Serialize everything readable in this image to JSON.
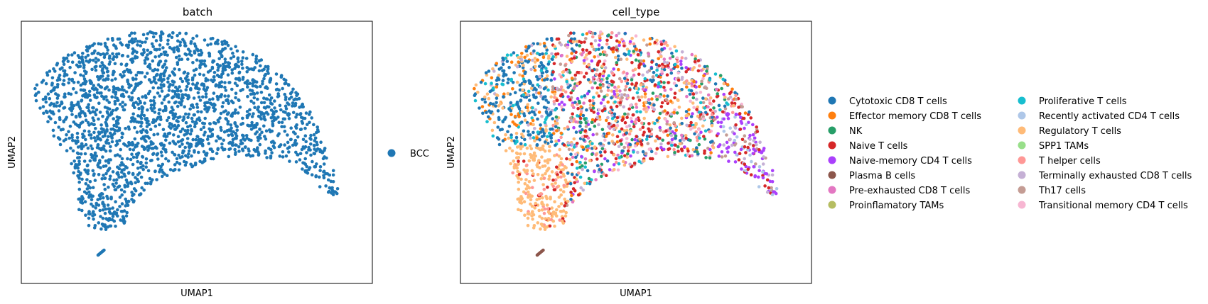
{
  "chart_data": [
    {
      "type": "scatter",
      "title": "batch",
      "xlabel": "UMAP1",
      "ylabel": "UMAP2",
      "grid": false,
      "ticks": false,
      "legend": {
        "placement": "right",
        "entries": [
          {
            "name": "BCC",
            "color": "#1f77b4"
          }
        ]
      },
      "point_color": "#1f77b4"
    },
    {
      "type": "scatter",
      "title": "cell_type",
      "xlabel": "UMAP1",
      "ylabel": "UMAP2",
      "grid": false,
      "ticks": false,
      "legend": {
        "placement": "right",
        "columns": 2,
        "entries": [
          {
            "name": "Cytotoxic CD8 T cells",
            "color": "#1f77b4"
          },
          {
            "name": "Effector memory CD8 T cells",
            "color": "#ff7f0e"
          },
          {
            "name": "NK",
            "color": "#279e68"
          },
          {
            "name": "Naive T cells",
            "color": "#d62728"
          },
          {
            "name": "Naive-memory CD4 T cells",
            "color": "#aa40fc"
          },
          {
            "name": "Plasma B cells",
            "color": "#8c564b"
          },
          {
            "name": "Pre-exhausted CD8 T cells",
            "color": "#e377c2"
          },
          {
            "name": "Proinflamatory TAMs",
            "color": "#b5bd61"
          },
          {
            "name": "Proliferative T cells",
            "color": "#17becf"
          },
          {
            "name": "Recently activated CD4 T cells",
            "color": "#aec7e8"
          },
          {
            "name": "Regulatory T cells",
            "color": "#ffbb78"
          },
          {
            "name": "SPP1 TAMs",
            "color": "#98df8a"
          },
          {
            "name": "T helper cells",
            "color": "#ff9896"
          },
          {
            "name": "Terminally exhausted CD8 T cells",
            "color": "#c5b0d5"
          },
          {
            "name": "Th17 cells",
            "color": "#c49c94"
          },
          {
            "name": "Transitional memory CD4 T cells",
            "color": "#f7b6d2"
          }
        ]
      }
    }
  ]
}
